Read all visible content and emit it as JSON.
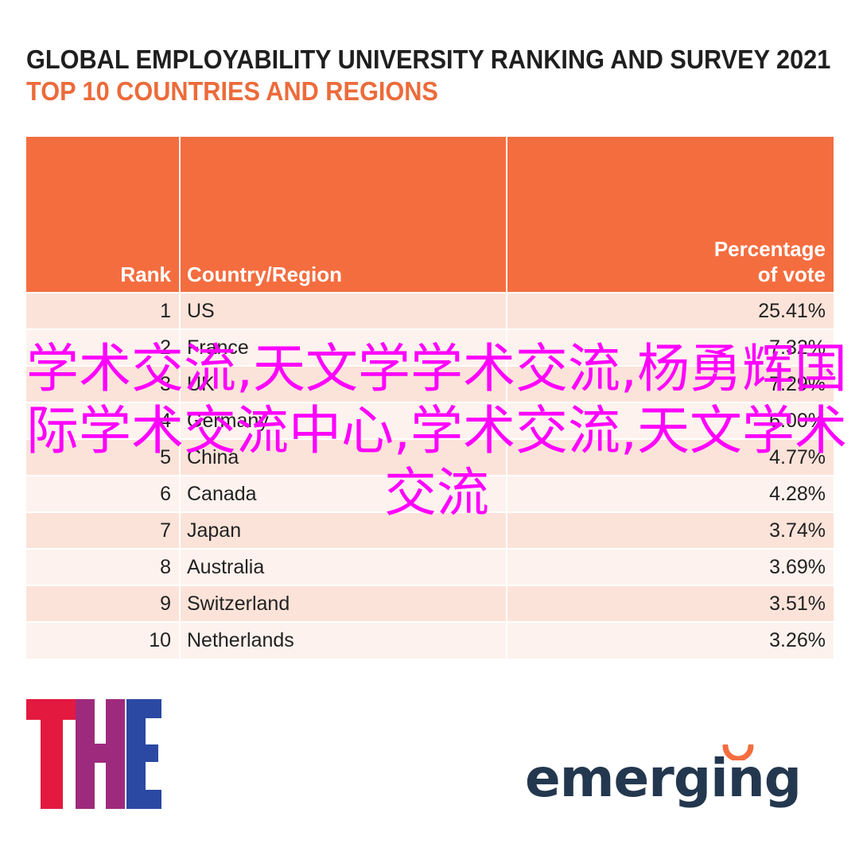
{
  "header": {
    "title": "GLOBAL EMPLOYABILITY UNIVERSITY RANKING AND SURVEY 2021",
    "subtitle": "TOP 10 COUNTRIES AND REGIONS"
  },
  "table": {
    "columns": [
      "Rank",
      "Country/Region",
      "Percentage of vote"
    ],
    "rows": [
      {
        "rank": "1",
        "country": "US",
        "pct": "25.41%"
      },
      {
        "rank": "2",
        "country": "France",
        "pct": "7.32%"
      },
      {
        "rank": "3",
        "country": "UK",
        "pct": "7.29%"
      },
      {
        "rank": "4",
        "country": "Germany",
        "pct": "6.00%"
      },
      {
        "rank": "5",
        "country": "China",
        "pct": "4.77%"
      },
      {
        "rank": "6",
        "country": "Canada",
        "pct": "4.28%"
      },
      {
        "rank": "7",
        "country": "Japan",
        "pct": "3.74%"
      },
      {
        "rank": "8",
        "country": "Australia",
        "pct": "3.69%"
      },
      {
        "rank": "9",
        "country": "Switzerland",
        "pct": "3.51%"
      },
      {
        "rank": "10",
        "country": "Netherlands",
        "pct": "3.26%"
      }
    ]
  },
  "logos": {
    "the": "THE",
    "emerging": "emerging"
  },
  "watermark": {
    "text": "学术交流,天文学学术交流,杨勇辉国际学术交流中心,学术交流,天文学术交流"
  },
  "colors": {
    "accent": "#f46d3f",
    "title": "#1f1f1f",
    "subtitle": "#ec6b3a",
    "row_odd": "#fce3d9",
    "row_even": "#fdf2ee",
    "watermark": "#ff00ff",
    "the_red": "#e3193f",
    "the_blue": "#2b49a3",
    "emerging_navy": "#23374e",
    "emerging_orange": "#f46d3f"
  }
}
